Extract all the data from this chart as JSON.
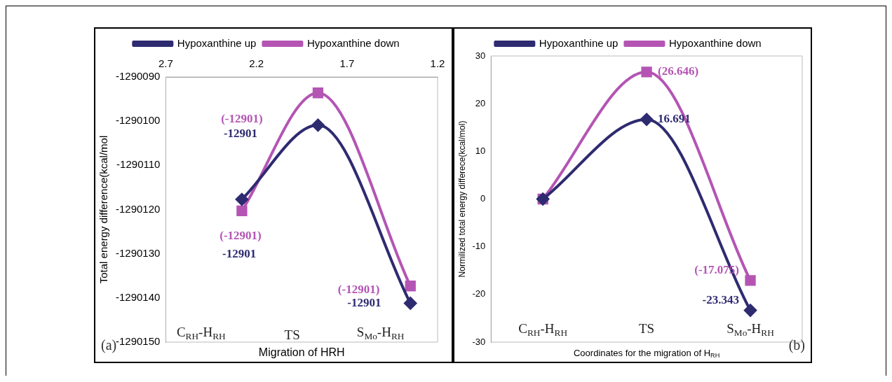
{
  "chart_data": [
    {
      "type": "line",
      "xlabel": "Migration of HRH",
      "ylabel": "Total energy difference(kcal/mol",
      "x": [
        2.28,
        1.86,
        1.35
      ],
      "xlim": [
        2.7,
        1.2
      ],
      "xticks": [
        2.7,
        2.2,
        1.7,
        1.2
      ],
      "ylim": [
        -1290150,
        -1290090
      ],
      "yticks": [
        -1290150,
        -1290140,
        -1290130,
        -1290120,
        -1290110,
        -1290100,
        -1290090
      ],
      "grid": false,
      "legend": "top",
      "series": [
        {
          "name": "Hypoxanthine up",
          "color": "#2e2b70",
          "marker": "diamond",
          "values": [
            -1290117.7,
            -1290100.9,
            -1290141.2
          ]
        },
        {
          "name": "Hypoxanthine down",
          "color": "#b455b4",
          "marker": "square",
          "values": [
            -1290120.3,
            -1290093.6,
            -1290137.3
          ]
        }
      ],
      "annotations": [
        "(-12901)",
        "-12901",
        "(-12901)",
        "-12901",
        "(-12901)",
        "-12901",
        "C$_{RH}$-H$_{RH}$",
        "TS",
        "S$_{Mo}$-H$_{RH}$",
        "(a)"
      ]
    },
    {
      "type": "line",
      "xlabel": "Coordinates for the migration of H$_{RH}$",
      "ylabel": "Normilized total energy differece(kcal/mol)",
      "categories": [
        "C$_{RH}$-H$_{RH}$",
        "TS",
        "S$_{Mo}$-H$_{RH}$"
      ],
      "ylim": [
        -30,
        30
      ],
      "yticks": [
        -30,
        -20,
        -10,
        0,
        10,
        20,
        30
      ],
      "grid": false,
      "legend": "top",
      "series": [
        {
          "name": "Hypoxanthine up",
          "color": "#2e2b70",
          "marker": "diamond",
          "values": [
            0,
            16.691,
            -23.343
          ],
          "value_labels": [
            null,
            "16.691",
            "-23.343"
          ]
        },
        {
          "name": "Hypoxanthine down",
          "color": "#b455b4",
          "marker": "square",
          "values": [
            0,
            26.646,
            -17.075
          ],
          "value_labels": [
            null,
            "(26.646)",
            "(-17.075)"
          ]
        }
      ],
      "annotations": [
        "(b)"
      ]
    }
  ]
}
